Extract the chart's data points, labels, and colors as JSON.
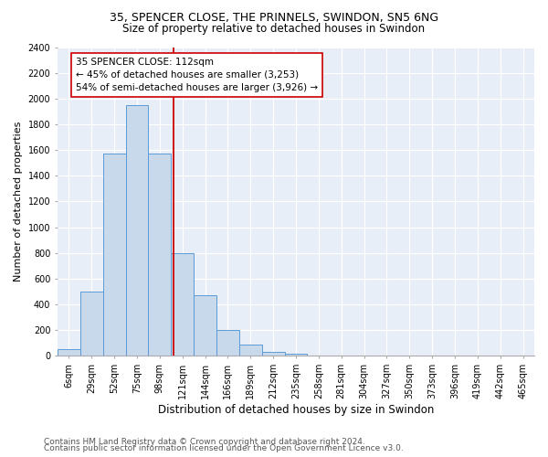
{
  "title_line1": "35, SPENCER CLOSE, THE PRINNELS, SWINDON, SN5 6NG",
  "title_line2": "Size of property relative to detached houses in Swindon",
  "xlabel": "Distribution of detached houses by size in Swindon",
  "ylabel": "Number of detached properties",
  "footer_line1": "Contains HM Land Registry data © Crown copyright and database right 2024.",
  "footer_line2": "Contains public sector information licensed under the Open Government Licence v3.0.",
  "categories": [
    "6sqm",
    "29sqm",
    "52sqm",
    "75sqm",
    "98sqm",
    "121sqm",
    "144sqm",
    "166sqm",
    "189sqm",
    "212sqm",
    "235sqm",
    "258sqm",
    "281sqm",
    "304sqm",
    "327sqm",
    "350sqm",
    "373sqm",
    "396sqm",
    "419sqm",
    "442sqm",
    "465sqm"
  ],
  "values": [
    50,
    500,
    1575,
    1950,
    1575,
    800,
    475,
    200,
    85,
    30,
    20,
    0,
    0,
    0,
    0,
    0,
    0,
    0,
    0,
    0,
    0
  ],
  "bar_color": "#c9d9ec",
  "bar_edge_color": "#5b9bd5",
  "ylim": [
    0,
    2400
  ],
  "yticks": [
    0,
    200,
    400,
    600,
    800,
    1000,
    1200,
    1400,
    1600,
    1800,
    2000,
    2200,
    2400
  ],
  "vline_color": "#cc0000",
  "vline_x": 4.61,
  "annotation_text": "35 SPENCER CLOSE: 112sqm\n← 45% of detached houses are smaller (3,253)\n54% of semi-detached houses are larger (3,926) →",
  "annotation_box_color": "white",
  "annotation_box_edge_color": "#cc0000",
  "background_color": "#e8eef7",
  "grid_color": "white",
  "title_fontsize": 9,
  "subtitle_fontsize": 8.5,
  "xlabel_fontsize": 8.5,
  "ylabel_fontsize": 8,
  "tick_fontsize": 7,
  "annotation_fontsize": 7.5,
  "footer_fontsize": 6.5
}
